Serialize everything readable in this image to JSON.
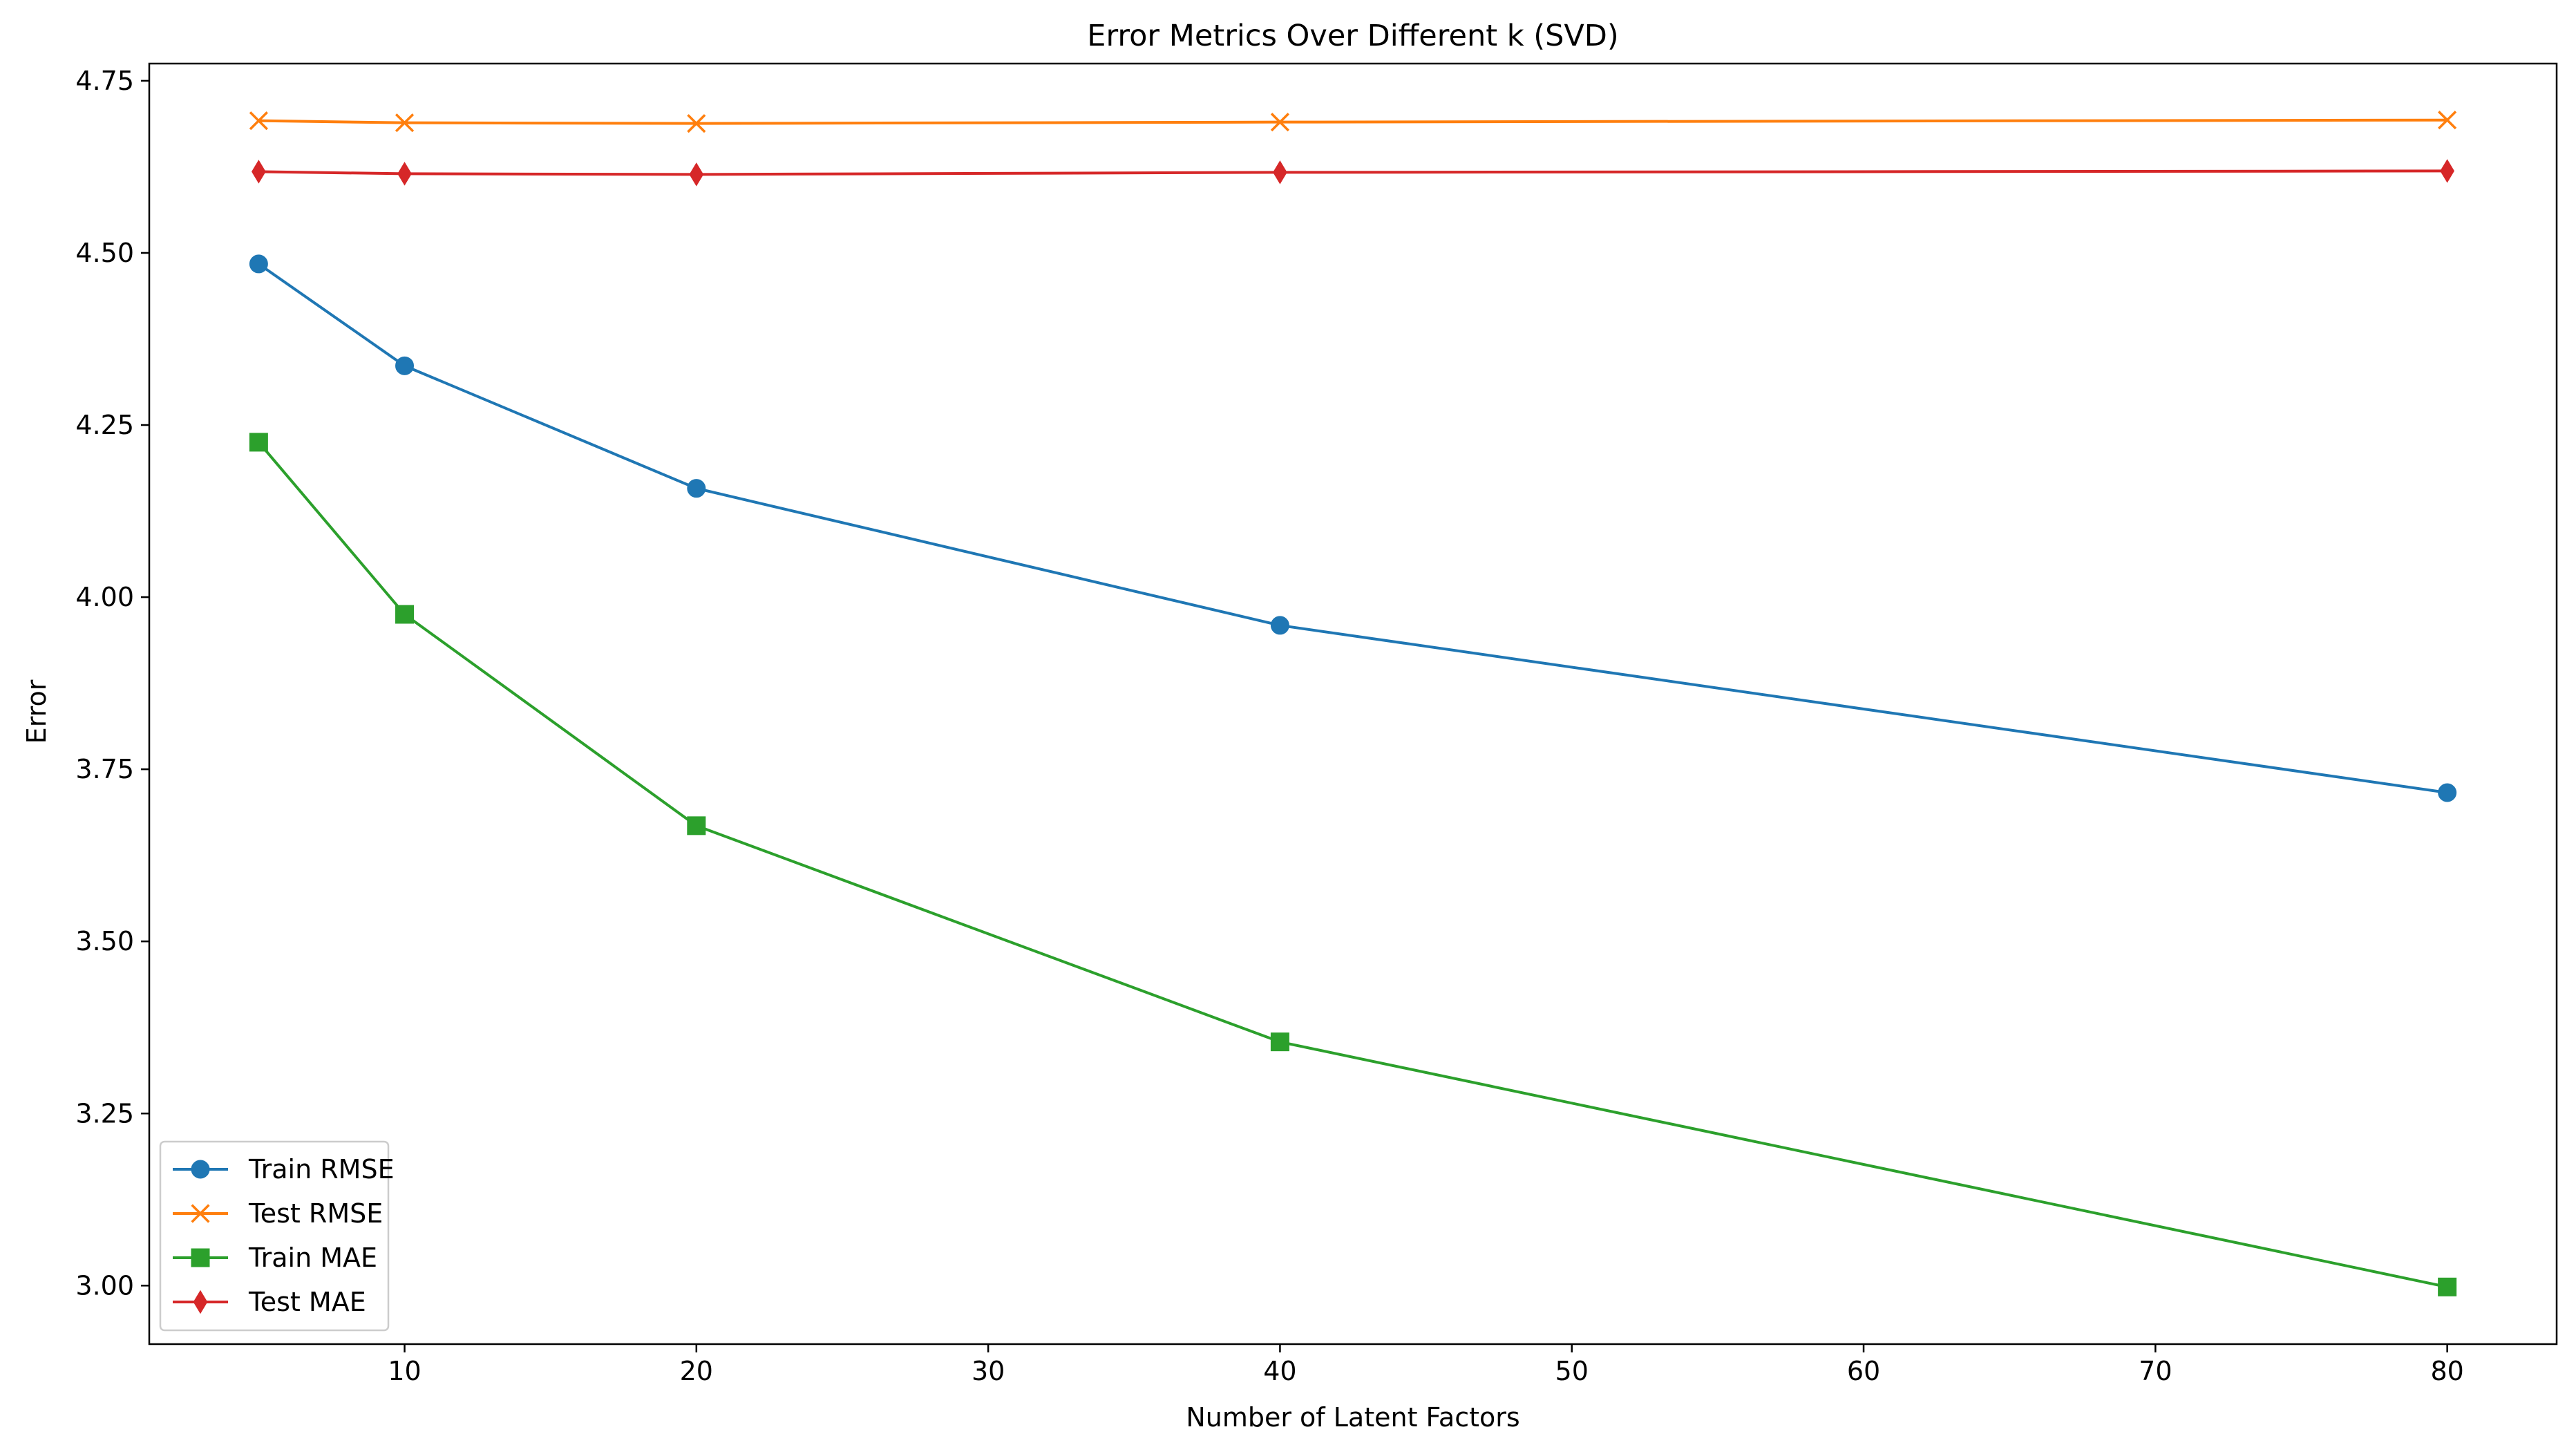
{
  "chart_data": {
    "type": "line",
    "title": "Error Metrics Over Different k (SVD)",
    "xlabel": "Number of Latent Factors",
    "ylabel": "Error",
    "x": [
      5,
      10,
      20,
      40,
      80
    ],
    "xlim": [
      1.25,
      83.75
    ],
    "ylim": [
      2.915,
      4.775
    ],
    "xticks": [
      10,
      20,
      30,
      40,
      50,
      60,
      70,
      80
    ],
    "yticks": [
      3.0,
      3.25,
      3.5,
      3.75,
      4.0,
      4.25,
      4.5,
      4.75
    ],
    "xtick_labels": [
      "10",
      "20",
      "30",
      "40",
      "50",
      "60",
      "70",
      "80"
    ],
    "ytick_labels": [
      "3.00",
      "3.25",
      "3.50",
      "3.75",
      "4.00",
      "4.25",
      "4.50",
      "4.75"
    ],
    "grid": false,
    "legend_position": "bottom-left",
    "series": [
      {
        "name": "Train RMSE",
        "values": [
          4.484,
          4.336,
          4.158,
          3.959,
          3.716
        ],
        "color": "#1f77b4",
        "marker": "circle"
      },
      {
        "name": "Test RMSE",
        "values": [
          4.692,
          4.689,
          4.688,
          4.69,
          4.693
        ],
        "color": "#ff7f0e",
        "marker": "x"
      },
      {
        "name": "Train MAE",
        "values": [
          4.225,
          3.975,
          3.668,
          3.354,
          2.998
        ],
        "color": "#2ca02c",
        "marker": "square"
      },
      {
        "name": "Test MAE",
        "values": [
          4.618,
          4.615,
          4.614,
          4.617,
          4.619
        ],
        "color": "#d62728",
        "marker": "diamond"
      }
    ]
  }
}
